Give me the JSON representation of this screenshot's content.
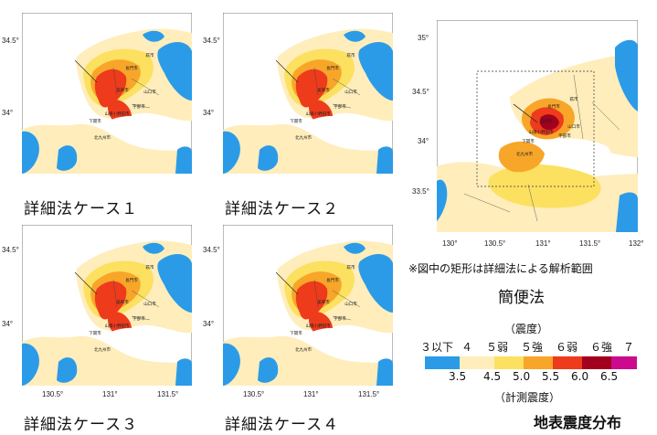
{
  "panels": [
    {
      "label": "詳細法ケース１",
      "yticks": [
        "34.5°",
        "34°"
      ],
      "xticks": []
    },
    {
      "label": "詳細法ケース２",
      "yticks": [
        "34.5°",
        "34°"
      ],
      "xticks": []
    },
    {
      "label": "詳細法ケース３",
      "yticks": [
        "34.5°",
        "34°"
      ],
      "xticks": [
        "130.5°",
        "131°",
        "131.5°"
      ]
    },
    {
      "label": "詳細法ケース４",
      "yticks": [
        "34.5°",
        "34°"
      ],
      "xticks": [
        "130.5°",
        "131°",
        "131.5°"
      ]
    }
  ],
  "simple": {
    "label": "簡便法",
    "yticks": [
      "35°",
      "34.5°",
      "34°",
      "33.5°"
    ],
    "xticks": [
      "130°",
      "130.5°",
      "131°",
      "131.5°",
      "132°"
    ],
    "note": "※図中の矩形は詳細法による解析範囲"
  },
  "cities": [
    "長門市",
    "萩市",
    "美祢市",
    "山口市",
    "宇部市",
    "山陽小野田市",
    "下関市",
    "北九州市"
  ],
  "legend": {
    "intensity_title": "（震度）",
    "intensity_classes": [
      "３以下",
      "４",
      "５弱",
      "５強",
      "６弱",
      "６強",
      "７"
    ],
    "scale_values": [
      "3.5",
      "4.5",
      "5.0",
      "5.5",
      "6.0",
      "6.5"
    ],
    "scale_title": "（計測震度）",
    "colors": [
      "#2b9be8",
      "#ffedbb",
      "#fce060",
      "#f7a62a",
      "#ee3b1c",
      "#a3001e",
      "#cc0a8e"
    ]
  },
  "title": "地表震度分布"
}
